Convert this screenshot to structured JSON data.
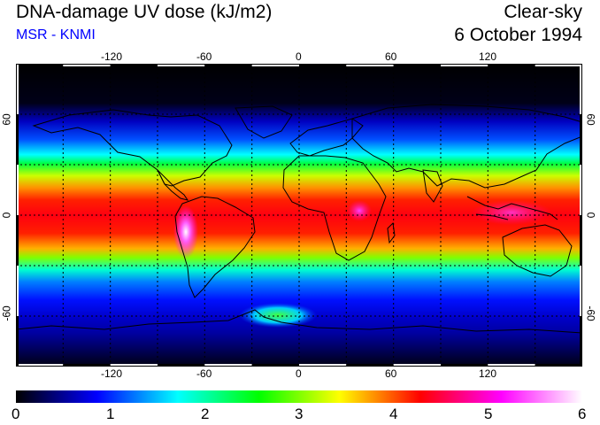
{
  "header": {
    "title": "DNA-damage UV dose (kJ/m2)",
    "subtitle": "MSR - KNMI",
    "condition": "Clear-sky",
    "date": "6 October 1994"
  },
  "map": {
    "projection": "equirectangular",
    "lon_range": [
      -180,
      180
    ],
    "lat_range": [
      -90,
      90
    ],
    "grid_spacing_lon": 30,
    "grid_spacing_lat": 30,
    "top_ticks": [
      "-120",
      "-60",
      "0",
      "60",
      "120"
    ],
    "bottom_ticks": [
      "-120",
      "-60",
      "0",
      "60",
      "120"
    ],
    "left_ticks": [
      "60",
      "0",
      "-60"
    ],
    "right_ticks": [
      "60",
      "0",
      "-60"
    ]
  },
  "colorbar": {
    "min": 0,
    "max": 6,
    "labels": [
      "0",
      "1",
      "2",
      "3",
      "4",
      "5",
      "6"
    ],
    "colors": [
      "#000000",
      "#0000ff",
      "#00ffff",
      "#00ff00",
      "#ffff00",
      "#ff0000",
      "#ff00ff",
      "#ffffff"
    ]
  },
  "colors": {
    "title_text": "#000000",
    "subtitle_text": "#0000ff",
    "frame": "#000000"
  }
}
